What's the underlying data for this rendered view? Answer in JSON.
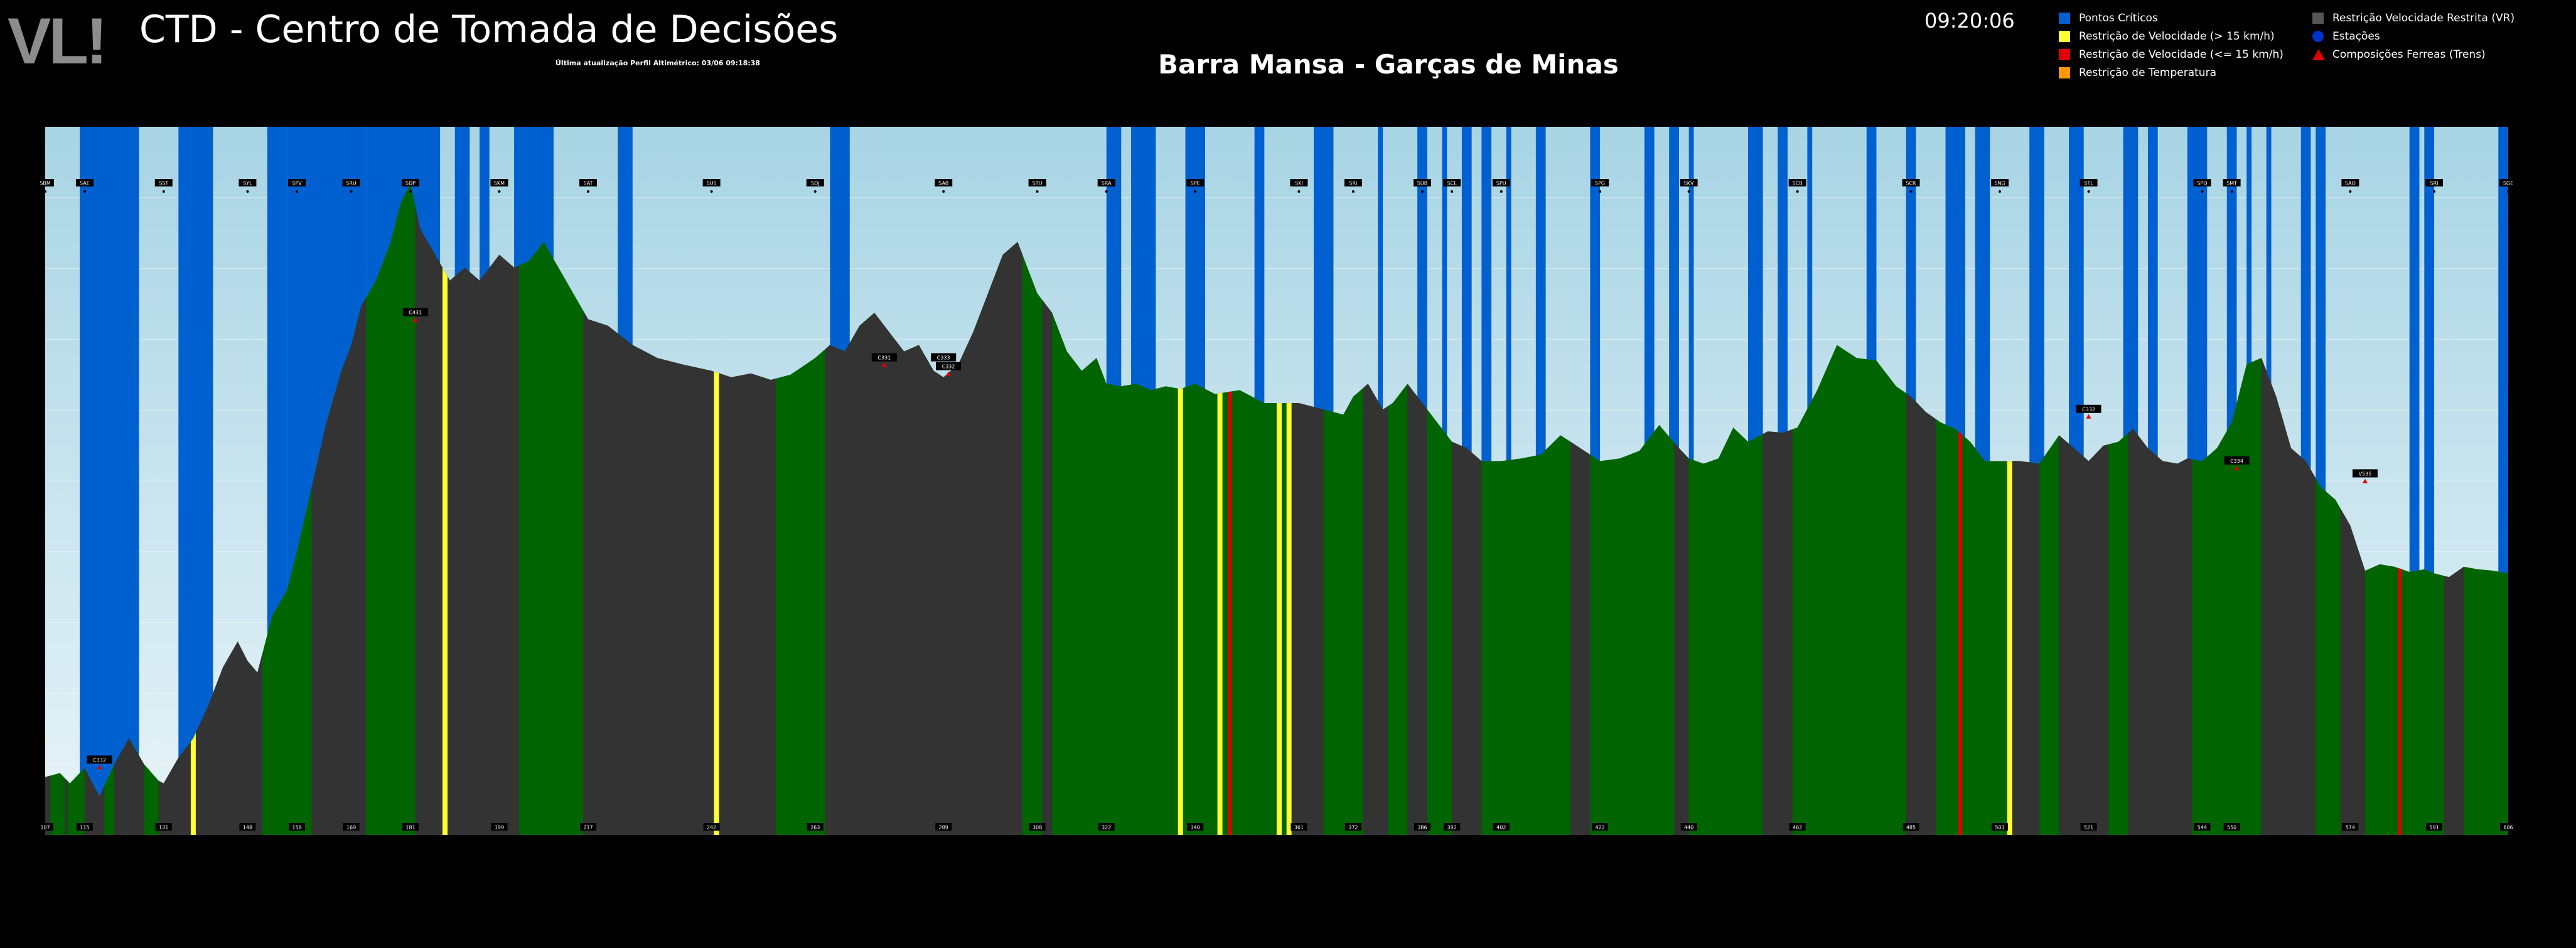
{
  "header": {
    "logo": "VL",
    "title": "CTD - Centro de Tomada de Decisões",
    "last_update": "Última atualização Perfil Altimétrico: 03/06 09:18:38",
    "route": "Barra Mansa - Garças de Minas",
    "clock": "09:20:06"
  },
  "legend": {
    "col1": [
      {
        "label": "Pontos Críticos",
        "color": "#0060d0",
        "shape": "square",
        "icon": "square-icon"
      },
      {
        "label": "Restrição de Velocidade (> 15 km/h)",
        "color": "#ffff33",
        "shape": "square",
        "icon": "square-icon"
      },
      {
        "label": "Restrição de Velocidade (<= 15 km/h)",
        "color": "#e00000",
        "shape": "square",
        "icon": "square-icon"
      },
      {
        "label": "Restrição de Temperatura",
        "color": "#ff9900",
        "shape": "square",
        "icon": "square-icon"
      }
    ],
    "col2": [
      {
        "label": "Restrição Velocidade Restrita (VR)",
        "color": "#555555",
        "shape": "square",
        "icon": "square-icon"
      },
      {
        "label": "Estações",
        "color": "#0033cc",
        "shape": "circle",
        "icon": "circle-icon"
      },
      {
        "label": "Composições Ferreas (Trens)",
        "color": "#e00000",
        "shape": "triangle",
        "icon": "triangle-icon"
      }
    ]
  },
  "colors": {
    "sky_top": "#a8d4e4",
    "sky_bottom": "#e8f4f8",
    "critical": "#0060d0",
    "terrain_green": "#006400",
    "terrain_vr": "#333333",
    "speed_gt15": "#ffff33",
    "speed_le15": "#e00000"
  },
  "chart_data": {
    "type": "area",
    "x_range": [
      107,
      606
    ],
    "km_ticks": [
      "107",
      "115",
      "131",
      "148",
      "158",
      "169",
      "181",
      "199",
      "217",
      "242",
      "263",
      "289",
      "308",
      "322",
      "340",
      "361",
      "372",
      "386",
      "392",
      "402",
      "422",
      "440",
      "462",
      "485",
      "503",
      "521",
      "544",
      "550",
      "574",
      "591",
      "606"
    ],
    "stations": [
      "SBM",
      "SAE",
      "SST",
      "SYL",
      "SPV",
      "SRU",
      "SDP",
      "SKM",
      "SAT",
      "SUS",
      "SDJ",
      "SAB",
      "STU",
      "SRA",
      "SPE",
      "SKI",
      "SRI",
      "SUB",
      "SCL",
      "SPU",
      "SPG",
      "SKV",
      "SCB",
      "SCR",
      "SNG",
      "STL",
      "SPQ",
      "SMT",
      "SAO",
      "SRI",
      "SGE"
    ],
    "trains": [
      "C332",
      "C431",
      "C331",
      "C333",
      "C332",
      "C332",
      "C334",
      "V535"
    ],
    "profile": {
      "km": [
        107,
        110,
        112,
        115,
        118,
        121,
        124,
        127,
        130,
        131,
        134,
        137,
        140,
        143,
        146,
        148,
        150,
        153,
        156,
        158,
        161,
        164,
        167,
        169,
        171,
        174,
        177,
        179,
        181,
        183,
        186,
        189,
        192,
        195,
        199,
        202,
        205,
        208,
        211,
        214,
        217,
        221,
        226,
        231,
        236,
        242,
        246,
        250,
        254,
        258,
        263,
        266,
        269,
        272,
        275,
        278,
        281,
        284,
        287,
        289,
        292,
        295,
        298,
        301,
        304,
        306,
        308,
        311,
        314,
        317,
        320,
        322,
        325,
        328,
        331,
        334,
        337,
        340,
        344,
        349,
        354,
        361,
        366,
        370,
        372,
        375,
        378,
        380,
        383,
        386,
        389,
        392,
        395,
        398,
        402,
        406,
        410,
        414,
        418,
        422,
        426,
        430,
        434,
        438,
        440,
        443,
        446,
        449,
        452,
        456,
        459,
        462,
        466,
        470,
        474,
        478,
        482,
        485,
        488,
        491,
        494,
        497,
        500,
        503,
        507,
        511,
        515,
        518,
        521,
        524,
        527,
        530,
        533,
        536,
        539,
        541,
        544,
        547,
        550,
        553,
        556,
        559,
        562,
        565,
        568,
        571,
        574,
        577,
        580,
        583,
        586,
        589,
        591,
        594,
        597,
        600,
        603,
        606
      ],
      "elev": [
        385,
        388,
        380,
        392,
        370,
        395,
        415,
        395,
        382,
        380,
        400,
        415,
        440,
        470,
        490,
        475,
        466,
        510,
        530,
        560,
        610,
        660,
        700,
        720,
        750,
        770,
        800,
        830,
        845,
        810,
        790,
        770,
        780,
        770,
        790,
        780,
        785,
        800,
        780,
        760,
        740,
        735,
        720,
        710,
        705,
        700,
        695,
        698,
        693,
        697,
        710,
        720,
        715,
        735,
        745,
        730,
        715,
        720,
        700,
        695,
        705,
        730,
        760,
        790,
        800,
        780,
        760,
        745,
        715,
        700,
        710,
        690,
        688,
        690,
        685,
        688,
        686,
        690,
        682,
        685,
        675,
        675,
        670,
        666,
        680,
        690,
        670,
        675,
        690,
        675,
        660,
        645,
        640,
        630,
        630,
        632,
        635,
        650,
        640,
        630,
        632,
        638,
        658,
        640,
        632,
        628,
        632,
        656,
        645,
        653,
        652,
        656,
        685,
        720,
        710,
        708,
        688,
        680,
        668,
        660,
        655,
        645,
        630,
        630,
        630,
        628,
        650,
        640,
        630,
        642,
        645,
        655,
        640,
        630,
        628,
        632,
        630,
        640,
        660,
        705,
        710,
        680,
        640,
        630,
        610,
        600,
        580,
        545,
        550,
        548,
        544,
        546,
        543,
        540,
        548,
        546,
        545,
        543
      ]
    },
    "critical_zones": [
      [
        114,
        126
      ],
      [
        134,
        141
      ],
      [
        152,
        156
      ],
      [
        156,
        172
      ],
      [
        172,
        187
      ],
      [
        190,
        193
      ],
      [
        195,
        197
      ],
      [
        202,
        210
      ],
      [
        223,
        226
      ],
      [
        266,
        270
      ],
      [
        322,
        325
      ],
      [
        327,
        332
      ],
      [
        338,
        342
      ],
      [
        352,
        354
      ],
      [
        364,
        368
      ],
      [
        377,
        378
      ],
      [
        385,
        387
      ],
      [
        390,
        391
      ],
      [
        394,
        396
      ],
      [
        398,
        400
      ],
      [
        403,
        404
      ],
      [
        409,
        411
      ],
      [
        420,
        422
      ],
      [
        431,
        433
      ],
      [
        436,
        438
      ],
      [
        440,
        441
      ],
      [
        452,
        455
      ],
      [
        458,
        460
      ],
      [
        464,
        465
      ],
      [
        476,
        478
      ],
      [
        484,
        486
      ],
      [
        492,
        496
      ],
      [
        498,
        501
      ],
      [
        509,
        512
      ],
      [
        517,
        520
      ],
      [
        528,
        531
      ],
      [
        533,
        535
      ],
      [
        541,
        545
      ],
      [
        549,
        551
      ],
      [
        553,
        554
      ],
      [
        557,
        558
      ],
      [
        564,
        566
      ],
      [
        567,
        569
      ],
      [
        586,
        588
      ],
      [
        589,
        591
      ],
      [
        604,
        606
      ]
    ],
    "vr_zones": [
      [
        107,
        108
      ],
      [
        111,
        111.5
      ],
      [
        115,
        119
      ],
      [
        121,
        127
      ],
      [
        130,
        151
      ],
      [
        161,
        172
      ],
      [
        182,
        203
      ],
      [
        216,
        255
      ],
      [
        265,
        305
      ],
      [
        309,
        311
      ],
      [
        359,
        366
      ],
      [
        374,
        379
      ],
      [
        383,
        387
      ],
      [
        392,
        398
      ],
      [
        416,
        420
      ],
      [
        437,
        440
      ],
      [
        455,
        461
      ],
      [
        484,
        490
      ],
      [
        505,
        511
      ],
      [
        515,
        525
      ],
      [
        529,
        542
      ],
      [
        556,
        567
      ],
      [
        572,
        577
      ],
      [
        593,
        597
      ]
    ],
    "speed_gt15": [
      137,
      188,
      243,
      337,
      345,
      357,
      359,
      505
    ],
    "speed_le15": [
      347,
      495,
      584
    ]
  }
}
